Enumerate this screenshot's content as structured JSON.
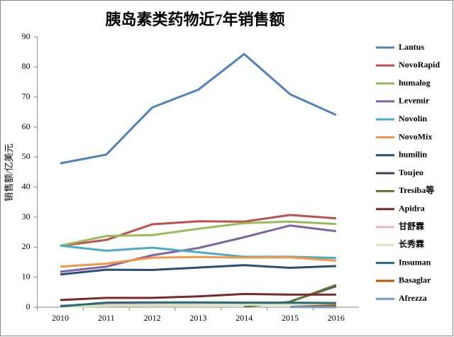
{
  "chart_data": {
    "type": "line",
    "title": "胰岛素类药物近7年销售额",
    "y_label": "销售额/亿美元",
    "categories": [
      "2010",
      "2011",
      "2012",
      "2013",
      "2014",
      "2015",
      "2016"
    ],
    "ylim": [
      0,
      90
    ],
    "yticks": [
      0,
      10,
      20,
      30,
      40,
      50,
      60,
      70,
      80,
      90
    ],
    "series": [
      {
        "name": "Lantus",
        "color": "#4f81bd",
        "values": [
          47.9,
          50.8,
          66.5,
          72.4,
          84.3,
          70.9,
          64.0
        ]
      },
      {
        "name": "NovoRapid",
        "color": "#c0504d",
        "values": [
          20.4,
          22.4,
          27.6,
          28.6,
          28.5,
          30.7,
          29.6
        ]
      },
      {
        "name": "humalog",
        "color": "#9bbb59",
        "values": [
          20.5,
          23.7,
          24.0,
          26.1,
          28.0,
          28.5,
          27.7
        ]
      },
      {
        "name": "Levemir",
        "color": "#8064a2",
        "values": [
          11.8,
          13.5,
          17.3,
          19.7,
          23.3,
          27.2,
          25.3
        ]
      },
      {
        "name": "Novolin",
        "color": "#4bacc6",
        "values": [
          20.5,
          18.8,
          19.8,
          18.3,
          16.8,
          16.8,
          16.4
        ]
      },
      {
        "name": "NovoMix",
        "color": "#f79646",
        "values": [
          13.5,
          14.5,
          16.5,
          16.7,
          16.5,
          16.6,
          15.5
        ]
      },
      {
        "name": "humilin",
        "color": "#2c4d75",
        "values": [
          10.9,
          12.5,
          12.4,
          13.2,
          14.0,
          13.1,
          13.7
        ]
      },
      {
        "name": "Toujeo",
        "color": "#4d3b62",
        "values": [
          null,
          null,
          null,
          null,
          null,
          1.9,
          7.0
        ]
      },
      {
        "name": "Tresiba等",
        "color": "#5f7530",
        "values": [
          null,
          null,
          null,
          null,
          0.2,
          1.8,
          7.4
        ]
      },
      {
        "name": "Apidra",
        "color": "#772c2a",
        "values": [
          2.4,
          3.1,
          3.1,
          3.6,
          4.4,
          4.2,
          4.2
        ]
      },
      {
        "name": "甘舒霖",
        "color": "#e6b9b8",
        "values": [
          0.6,
          1.0,
          1.1,
          1.2,
          1.2,
          1.2,
          1.1
        ]
      },
      {
        "name": "长秀霖",
        "color": "#d7e4bd",
        "values": [
          0.2,
          0.4,
          0.6,
          0.7,
          0.8,
          0.9,
          1.0
        ]
      },
      {
        "name": "Insuman",
        "color": "#276a7c",
        "values": [
          0.3,
          1.5,
          1.6,
          1.6,
          1.5,
          1.5,
          1.4
        ]
      },
      {
        "name": "Basaglar",
        "color": "#b65708",
        "values": [
          null,
          null,
          null,
          null,
          null,
          0.1,
          0.6
        ]
      },
      {
        "name": "Afrezza",
        "color": "#729aca",
        "values": [
          null,
          null,
          null,
          null,
          null,
          0.1,
          0.0
        ]
      }
    ]
  }
}
